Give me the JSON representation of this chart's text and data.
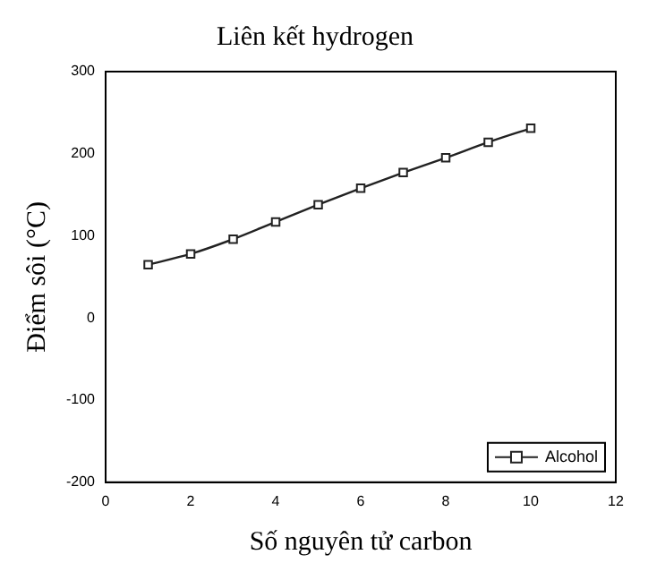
{
  "chart_data": {
    "type": "line",
    "title": "Liên kết hydrogen",
    "xlabel": "Số nguyên tử carbon",
    "ylabel": "Điểm sôi (°C)",
    "x": [
      1,
      2,
      3,
      4,
      5,
      6,
      7,
      8,
      9,
      10
    ],
    "series": [
      {
        "name": "Alcohol",
        "color": "#222222",
        "values": [
          65,
          78,
          96,
          117,
          138,
          158,
          177,
          195,
          214,
          231
        ]
      }
    ],
    "xlim": [
      0,
      12
    ],
    "xticks": [
      0,
      2,
      4,
      6,
      8,
      10,
      12
    ],
    "ylim": [
      -200,
      300
    ],
    "yticks": [
      -200,
      -100,
      0,
      100,
      200,
      300
    ],
    "grid": false,
    "legend": "bottom right",
    "marker": "square",
    "line_style": "solid"
  }
}
